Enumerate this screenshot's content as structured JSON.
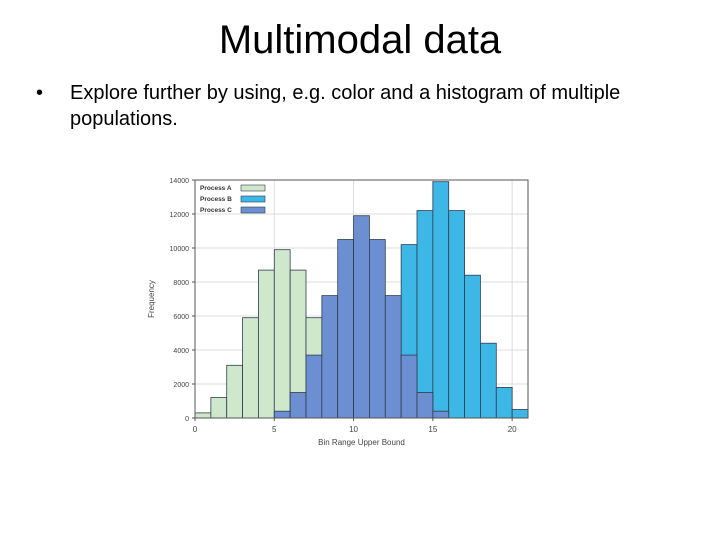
{
  "slide": {
    "title": "Multimodal data",
    "bullet_marker": "•",
    "bullet_text": "Explore further by using, e.g. color and a histogram of multiple populations."
  },
  "chart_data": {
    "type": "bar",
    "subtype": "overlapping-histogram",
    "title": "",
    "xlabel": "Bin Range Upper Bound",
    "ylabel": "Frequency",
    "xlim": [
      0,
      21
    ],
    "ylim": [
      0,
      14000
    ],
    "xticks": [
      0,
      5,
      10,
      15,
      20
    ],
    "yticks": [
      0,
      2000,
      4000,
      6000,
      8000,
      10000,
      12000,
      14000
    ],
    "bin_width": 1,
    "grid": true,
    "legend_position": "top-left",
    "series": [
      {
        "name": "Process A",
        "color": "#cfe8cc",
        "bins": [
          {
            "x": 1,
            "y": 300
          },
          {
            "x": 2,
            "y": 1200
          },
          {
            "x": 3,
            "y": 3100
          },
          {
            "x": 4,
            "y": 5900
          },
          {
            "x": 5,
            "y": 8700
          },
          {
            "x": 6,
            "y": 9900
          },
          {
            "x": 7,
            "y": 8700
          },
          {
            "x": 8,
            "y": 5900
          },
          {
            "x": 9,
            "y": 3100
          },
          {
            "x": 10,
            "y": 1200
          },
          {
            "x": 11,
            "y": 300
          }
        ]
      },
      {
        "name": "Process B",
        "color": "#3db8e6",
        "bins": [
          {
            "x": 10,
            "y": 300
          },
          {
            "x": 11,
            "y": 1200
          },
          {
            "x": 12,
            "y": 3100
          },
          {
            "x": 13,
            "y": 6200
          },
          {
            "x": 14,
            "y": 10200
          },
          {
            "x": 15,
            "y": 12200
          },
          {
            "x": 16,
            "y": 13900
          },
          {
            "x": 17,
            "y": 12200
          },
          {
            "x": 18,
            "y": 8400
          },
          {
            "x": 19,
            "y": 4400
          },
          {
            "x": 20,
            "y": 1800
          },
          {
            "x": 21,
            "y": 500
          }
        ]
      },
      {
        "name": "Process C",
        "color": "#6b8fd0",
        "bins": [
          {
            "x": 6,
            "y": 400
          },
          {
            "x": 7,
            "y": 1500
          },
          {
            "x": 8,
            "y": 3700
          },
          {
            "x": 9,
            "y": 7200
          },
          {
            "x": 10,
            "y": 10500
          },
          {
            "x": 11,
            "y": 11900
          },
          {
            "x": 12,
            "y": 10500
          },
          {
            "x": 13,
            "y": 7200
          },
          {
            "x": 14,
            "y": 3700
          },
          {
            "x": 15,
            "y": 1500
          },
          {
            "x": 16,
            "y": 400
          }
        ]
      }
    ]
  }
}
